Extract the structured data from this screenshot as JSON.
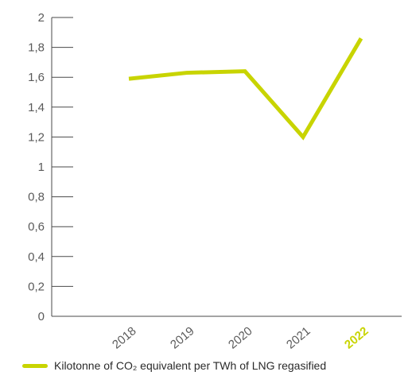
{
  "chart_data": {
    "type": "line",
    "x": [
      "2018",
      "2019",
      "2020",
      "2021",
      "2022"
    ],
    "highlight_category": "2022",
    "series": [
      {
        "name": "Kilotonne of CO₂ equivalent per TWh of LNG regasified",
        "values": [
          1.59,
          1.63,
          1.64,
          1.2,
          1.86
        ],
        "color": "#c8d400"
      }
    ],
    "ylim": [
      0,
      2
    ],
    "yticks": [
      0,
      0.2,
      0.4,
      0.6,
      0.8,
      1,
      1.2,
      1.4,
      1.6,
      1.8,
      2
    ],
    "ytick_labels": [
      "0",
      "0,2",
      "0,4",
      "0,6",
      "0,8",
      "1",
      "1,2",
      "1,4",
      "1,6",
      "1,8",
      "2"
    ],
    "grid": false,
    "legend_position": "bottom-left",
    "title": "",
    "xlabel": "",
    "ylabel": "",
    "axis_color": "#4a4a4a",
    "label_color": "#5a5a5a",
    "highlight_color": "#c8d400"
  },
  "legend": {
    "label": "Kilotonne of CO₂ equivalent per TWh of LNG regasified"
  }
}
